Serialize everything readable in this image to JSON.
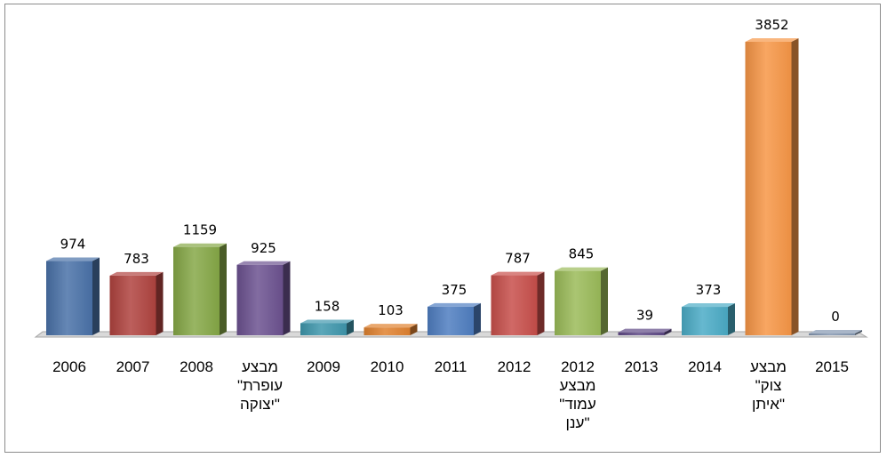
{
  "chart_data": {
    "type": "bar",
    "categories": [
      [
        "2006"
      ],
      [
        "2007"
      ],
      [
        "2008"
      ],
      [
        "מבצע",
        "\"עופרת",
        "יצוקה\""
      ],
      [
        "2009"
      ],
      [
        "2010"
      ],
      [
        "2011"
      ],
      [
        "2012"
      ],
      [
        "2012",
        "מבצע",
        "\"עמוד",
        "ענן\""
      ],
      [
        "2013"
      ],
      [
        "2014"
      ],
      [
        "מבצע",
        "\"צוק",
        "איתן\""
      ],
      [
        "2015"
      ]
    ],
    "values": [
      974,
      783,
      1159,
      925,
      158,
      103,
      375,
      787,
      845,
      39,
      373,
      3852,
      0
    ],
    "colors": [
      "#4a72a8",
      "#b0433f",
      "#86a847",
      "#6c5290",
      "#3f97ad",
      "#e0812f",
      "#4f7ec1",
      "#c84f4b",
      "#9bbb59",
      "#5f4a86",
      "#4bacc6",
      "#f79646",
      "#8496b0"
    ],
    "ylim": [
      0,
      3852
    ],
    "grid": false,
    "legend": "none",
    "title": "",
    "xlabel": "",
    "ylabel": ""
  }
}
